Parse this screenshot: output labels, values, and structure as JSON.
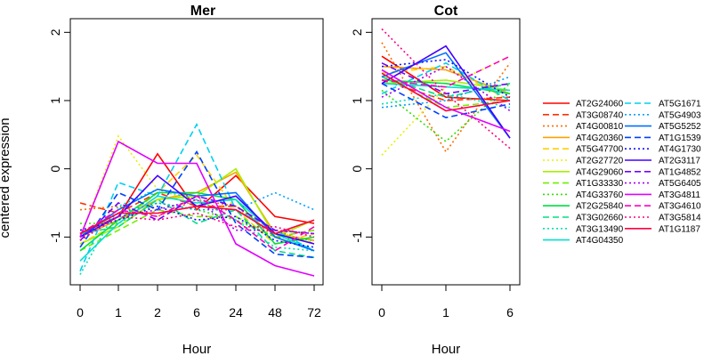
{
  "chart_data": {
    "type": "line",
    "ylabel": "centered expression",
    "xlabel": "Hour",
    "legend_position": "right",
    "series_styles": [
      {
        "name": "AT2G24060",
        "color": "#ff0000",
        "dash": "solid"
      },
      {
        "name": "AT3G08740",
        "color": "#ff3000",
        "dash": "dashed"
      },
      {
        "name": "AT4G00810",
        "color": "#ff6a00",
        "dash": "dotted"
      },
      {
        "name": "AT4G20360",
        "color": "#ffa000",
        "dash": "solid"
      },
      {
        "name": "AT5G47700",
        "color": "#ffd000",
        "dash": "dashed"
      },
      {
        "name": "AT2G27720",
        "color": "#e8f000",
        "dash": "dotted"
      },
      {
        "name": "AT4G29060",
        "color": "#a8f000",
        "dash": "solid"
      },
      {
        "name": "AT1G33330",
        "color": "#70f000",
        "dash": "dashed"
      },
      {
        "name": "AT4G33760",
        "color": "#30e000",
        "dash": "dotted"
      },
      {
        "name": "AT2G25840",
        "color": "#00e040",
        "dash": "solid"
      },
      {
        "name": "AT3G02660",
        "color": "#00e080",
        "dash": "dashed"
      },
      {
        "name": "AT3G13490",
        "color": "#00e0b0",
        "dash": "dotted"
      },
      {
        "name": "AT4G04350",
        "color": "#00e0d0",
        "dash": "solid"
      },
      {
        "name": "AT5G1671",
        "color": "#00d0f0",
        "dash": "dashed"
      },
      {
        "name": "AT5G4903",
        "color": "#00a0ff",
        "dash": "dotted"
      },
      {
        "name": "AT5G5252",
        "color": "#0070ff",
        "dash": "solid"
      },
      {
        "name": "AT1G1539",
        "color": "#0040ff",
        "dash": "dashed"
      },
      {
        "name": "AT4G1730",
        "color": "#1010ff",
        "dash": "dotted"
      },
      {
        "name": "AT2G3117",
        "color": "#4000ff",
        "dash": "solid"
      },
      {
        "name": "AT1G4852",
        "color": "#7000ff",
        "dash": "dashed"
      },
      {
        "name": "AT5G6405",
        "color": "#a000ff",
        "dash": "dotted"
      },
      {
        "name": "AT3G4811",
        "color": "#e000ff",
        "dash": "solid"
      },
      {
        "name": "AT3G4610",
        "color": "#ff00c0",
        "dash": "dashed"
      },
      {
        "name": "AT3G5814",
        "color": "#ff0080",
        "dash": "dotted"
      },
      {
        "name": "AT1G1187",
        "color": "#ff0040",
        "dash": "solid"
      }
    ],
    "panels": [
      {
        "title": "Mer",
        "x": [
          "0",
          "1",
          "2",
          "6",
          "24",
          "48",
          "72"
        ],
        "ylim": [
          -1.7,
          2.2
        ],
        "yticks": [
          -1,
          0,
          1,
          2
        ],
        "series": [
          {
            "name": "AT2G24060",
            "values": [
              -0.95,
              -0.7,
              0.22,
              -0.6,
              -0.1,
              -0.7,
              -0.8
            ]
          },
          {
            "name": "AT3G08740",
            "values": [
              -0.5,
              -0.65,
              -0.35,
              -0.55,
              -0.55,
              -0.9,
              -1.1
            ]
          },
          {
            "name": "AT4G00810",
            "values": [
              -0.6,
              -0.55,
              -0.7,
              -0.45,
              -0.55,
              -1.0,
              -0.9
            ]
          },
          {
            "name": "AT4G20360",
            "values": [
              -1.0,
              -0.75,
              -0.45,
              -0.35,
              -0.05,
              -0.95,
              -1.05
            ]
          },
          {
            "name": "AT5G47700",
            "values": [
              -1.1,
              -0.8,
              -0.35,
              0.2,
              -0.6,
              -1.1,
              -0.95
            ]
          },
          {
            "name": "AT2G27720",
            "values": [
              -1.0,
              0.48,
              -0.3,
              -0.5,
              -0.6,
              -0.9,
              -1.1
            ]
          },
          {
            "name": "AT4G29060",
            "values": [
              -1.1,
              -0.85,
              -0.45,
              -0.4,
              0.0,
              -1.0,
              -0.75
            ]
          },
          {
            "name": "AT1G33330",
            "values": [
              -1.2,
              -0.9,
              -0.6,
              -0.7,
              -0.7,
              -1.0,
              -0.9
            ]
          },
          {
            "name": "AT4G33760",
            "values": [
              -0.8,
              -0.8,
              -0.5,
              -0.6,
              -0.75,
              -1.0,
              -1.05
            ]
          },
          {
            "name": "AT2G25840",
            "values": [
              -1.2,
              -0.75,
              -0.35,
              -0.35,
              -0.45,
              -1.1,
              -1.0
            ]
          },
          {
            "name": "AT3G02660",
            "values": [
              -0.95,
              -0.85,
              -0.45,
              -0.8,
              -0.6,
              -1.2,
              -1.3
            ]
          },
          {
            "name": "AT3G13490",
            "values": [
              -1.55,
              -0.55,
              -0.3,
              -0.45,
              -0.75,
              -1.15,
              -1.2
            ]
          },
          {
            "name": "AT4G04350",
            "values": [
              -1.35,
              -0.8,
              -0.4,
              -0.5,
              -0.45,
              -0.95,
              -1.2
            ]
          },
          {
            "name": "AT5G1671",
            "values": [
              -1.5,
              -0.2,
              -0.4,
              0.65,
              -0.6,
              -0.9,
              -1.2
            ]
          },
          {
            "name": "AT5G4903",
            "values": [
              -1.05,
              -0.65,
              -0.5,
              -0.6,
              -0.6,
              -0.35,
              -0.6
            ]
          },
          {
            "name": "AT5G5252",
            "values": [
              -1.0,
              -0.6,
              -0.3,
              -0.4,
              -0.35,
              -1.0,
              -1.2
            ]
          },
          {
            "name": "AT1G1539",
            "values": [
              -1.15,
              -0.35,
              -0.6,
              0.25,
              -0.8,
              -1.25,
              -1.3
            ]
          },
          {
            "name": "AT4G1730",
            "values": [
              -0.9,
              -0.75,
              -0.55,
              -0.75,
              -0.7,
              -1.05,
              -1.15
            ]
          },
          {
            "name": "AT2G3117",
            "values": [
              -1.0,
              -0.7,
              -0.1,
              -0.55,
              -0.4,
              -0.95,
              -1.1
            ]
          },
          {
            "name": "AT1G4852",
            "values": [
              -1.05,
              -0.5,
              -0.75,
              -0.4,
              -0.55,
              -0.9,
              -0.95
            ]
          },
          {
            "name": "AT5G6405",
            "values": [
              -1.0,
              -0.7,
              -0.6,
              -0.45,
              -0.9,
              -0.9,
              -0.95
            ]
          },
          {
            "name": "AT3G4811",
            "values": [
              -1.0,
              0.4,
              0.08,
              0.08,
              -1.1,
              -1.42,
              -1.57
            ]
          },
          {
            "name": "AT3G4610",
            "values": [
              -0.95,
              -0.6,
              -0.7,
              -0.4,
              -0.75,
              -1.2,
              -0.85
            ]
          },
          {
            "name": "AT3G5814",
            "values": [
              -1.05,
              -0.7,
              -0.75,
              -0.65,
              -0.85,
              -0.85,
              -1.0
            ]
          },
          {
            "name": "AT1G1187",
            "values": [
              -0.95,
              -0.65,
              -0.65,
              -0.55,
              -0.6,
              -0.95,
              -0.75
            ]
          }
        ]
      },
      {
        "title": "Cot",
        "x": [
          "0",
          "1",
          "6"
        ],
        "ylim": [
          -1.7,
          2.2
        ],
        "yticks": [
          -1,
          0,
          1,
          2
        ],
        "series": [
          {
            "name": "AT2G24060",
            "values": [
              1.65,
              1.05,
              1.0
            ]
          },
          {
            "name": "AT3G08740",
            "values": [
              1.3,
              1.0,
              1.05
            ]
          },
          {
            "name": "AT4G00810",
            "values": [
              1.85,
              0.25,
              1.55
            ]
          },
          {
            "name": "AT4G20360",
            "values": [
              1.5,
              1.45,
              1.1
            ]
          },
          {
            "name": "AT5G47700",
            "values": [
              1.4,
              1.5,
              1.0
            ]
          },
          {
            "name": "AT2G27720",
            "values": [
              0.2,
              1.2,
              1.65
            ]
          },
          {
            "name": "AT4G29060",
            "values": [
              1.25,
              1.3,
              1.15
            ]
          },
          {
            "name": "AT1G33330",
            "values": [
              1.35,
              0.9,
              1.0
            ]
          },
          {
            "name": "AT4G33760",
            "values": [
              1.15,
              0.4,
              1.25
            ]
          },
          {
            "name": "AT2G25840",
            "values": [
              1.3,
              1.25,
              1.1
            ]
          },
          {
            "name": "AT3G02660",
            "values": [
              1.35,
              1.05,
              1.25
            ]
          },
          {
            "name": "AT3G13490",
            "values": [
              0.95,
              1.1,
              0.9
            ]
          },
          {
            "name": "AT4G04350",
            "values": [
              1.25,
              1.2,
              1.15
            ]
          },
          {
            "name": "AT5G1671",
            "values": [
              1.1,
              1.55,
              1.0
            ]
          },
          {
            "name": "AT5G4903",
            "values": [
              0.9,
              1.0,
              1.35
            ]
          },
          {
            "name": "AT5G5252",
            "values": [
              1.35,
              1.7,
              0.45
            ]
          },
          {
            "name": "AT1G1539",
            "values": [
              1.25,
              0.75,
              0.95
            ]
          },
          {
            "name": "AT4G1730",
            "values": [
              1.5,
              1.6,
              1.05
            ]
          },
          {
            "name": "AT2G3117",
            "values": [
              1.25,
              1.8,
              0.45
            ]
          },
          {
            "name": "AT1G4852",
            "values": [
              1.55,
              1.1,
              1.25
            ]
          },
          {
            "name": "AT5G6405",
            "values": [
              1.05,
              1.5,
              0.85
            ]
          },
          {
            "name": "AT3G4811",
            "values": [
              1.45,
              0.9,
              0.55
            ]
          },
          {
            "name": "AT3G4610",
            "values": [
              1.3,
              1.2,
              1.65
            ]
          },
          {
            "name": "AT3G5814",
            "values": [
              2.05,
              1.1,
              0.3
            ]
          },
          {
            "name": "AT1G1187",
            "values": [
              1.4,
              0.85,
              1.0
            ]
          }
        ]
      }
    ]
  }
}
